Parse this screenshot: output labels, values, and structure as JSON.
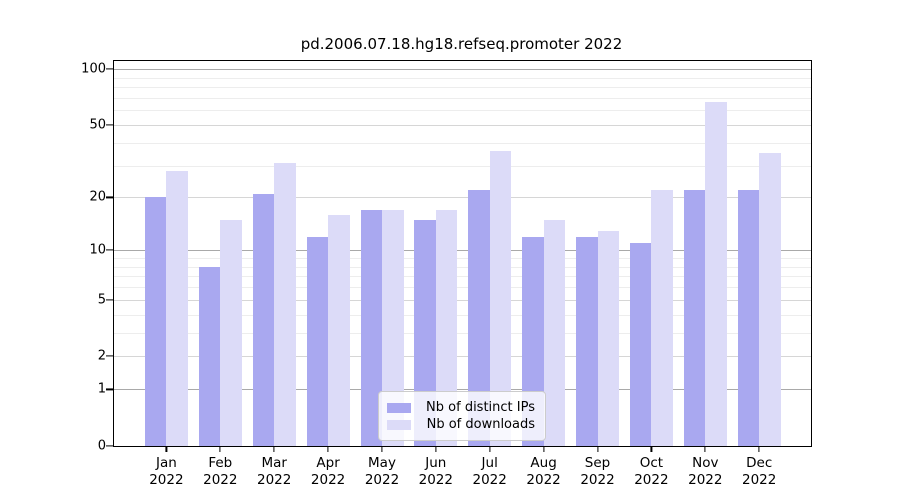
{
  "title": "pd.2006.07.18.hg18.refseq.promoter 2022",
  "chart_data": {
    "type": "bar",
    "title": "pd.2006.07.18.hg18.refseq.promoter 2022",
    "scale": "log1p",
    "grid": true,
    "legend_position": "bottom-center",
    "categories": [
      "Jan",
      "Feb",
      "Mar",
      "Apr",
      "May",
      "Jun",
      "Jul",
      "Aug",
      "Sep",
      "Oct",
      "Nov",
      "Dec"
    ],
    "category_year": "2022",
    "series": [
      {
        "name": "Nb of distinct IPs",
        "color": "#a9a8f0",
        "values": [
          20,
          8,
          21,
          12,
          17,
          15,
          22,
          12,
          12,
          11,
          22,
          22
        ]
      },
      {
        "name": "Nb of downloads",
        "color": "#dcdbf8",
        "values": [
          28,
          15,
          31,
          16,
          17,
          17,
          36,
          15,
          13,
          22,
          67,
          35
        ]
      }
    ],
    "ylim": [
      0,
      100
    ],
    "yticks": [
      0,
      1,
      2,
      5,
      10,
      20,
      50,
      100
    ],
    "minor_gridlines": [
      3,
      4,
      6,
      7,
      8,
      9,
      30,
      40,
      60,
      70,
      80,
      90
    ],
    "strong_gridlines": [
      1,
      10,
      100
    ]
  }
}
